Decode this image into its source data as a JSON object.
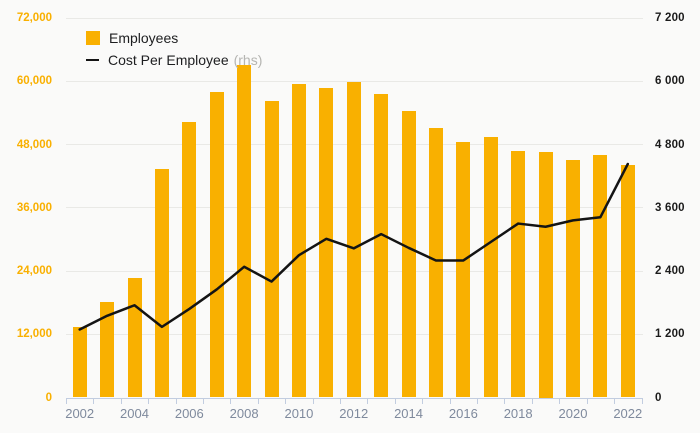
{
  "chart_data": {
    "type": "bar",
    "subtype": "bar-line-combo",
    "title": "",
    "x": [
      2002,
      2003,
      2004,
      2005,
      2006,
      2007,
      2008,
      2009,
      2010,
      2011,
      2012,
      2013,
      2014,
      2015,
      2016,
      2017,
      2018,
      2019,
      2020,
      2021,
      2022
    ],
    "series": [
      {
        "name": "Employees",
        "render": "bar",
        "axis": "left",
        "color": "#f9b000",
        "values": [
          13400,
          18200,
          22600,
          43300,
          52200,
          57900,
          63100,
          56200,
          59400,
          58700,
          59800,
          57500,
          54400,
          51200,
          48400,
          49400,
          46800,
          46500,
          45100,
          46000,
          44200
        ]
      },
      {
        "name": "Cost Per Employee",
        "render": "line",
        "axis": "right",
        "color": "#141414",
        "values": [
          1290,
          1550,
          1750,
          1340,
          1680,
          2050,
          2480,
          2200,
          2700,
          3010,
          2830,
          3100,
          2840,
          2600,
          2600,
          2950,
          3300,
          3240,
          3360,
          3420,
          4430
        ]
      }
    ],
    "left_axis": {
      "max": 72000,
      "tick_values": [
        0,
        12000,
        24000,
        36000,
        48000,
        60000,
        72000
      ],
      "tick_labels": [
        "0",
        "12,000",
        "24,000",
        "36,000",
        "48,000",
        "60,000",
        "72,000"
      ],
      "color": "#f9b000"
    },
    "right_axis": {
      "max": 7200,
      "tick_values": [
        0,
        1200,
        2400,
        3600,
        4800,
        6000,
        7200
      ],
      "tick_labels": [
        "0",
        "1 200",
        "2 400",
        "3 600",
        "4 800",
        "6 000",
        "7 200"
      ],
      "color": "#1b1b1b"
    },
    "x_axis": {
      "labeled_years": [
        2002,
        2004,
        2006,
        2008,
        2010,
        2012,
        2014,
        2016,
        2018,
        2020,
        2022
      ],
      "label_color": "#7f8a9d",
      "line_color": "#c2cde0"
    },
    "legend": [
      {
        "label": "Employees",
        "suffix": ""
      },
      {
        "label": "Cost Per Employee",
        "suffix": "(rhs)"
      }
    ],
    "grid": "horizontal",
    "background": "#fafaf9"
  }
}
